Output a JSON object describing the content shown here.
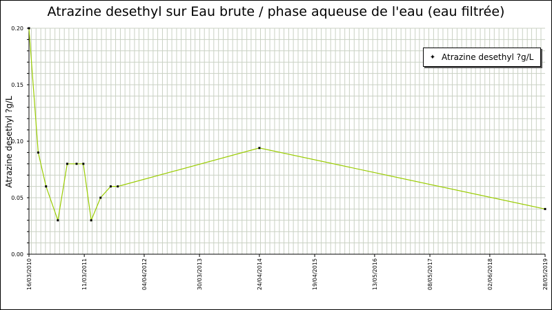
{
  "chart_data": {
    "type": "line",
    "title": "Atrazine desethyl sur Eau brute / phase aqueuse de l'eau (eau filtrée)",
    "ylabel": "Atrazine desethyl ?g/L",
    "xlabel": "",
    "ylim": [
      0,
      0.2
    ],
    "y_ticks": [
      "0.00",
      "0.05",
      "0.10",
      "0.15",
      "0.20"
    ],
    "x_range": [
      "2010-03-16",
      "2019-05-28"
    ],
    "x_ticks": [
      {
        "date": "2010-03-16",
        "label": "16/03/2010"
      },
      {
        "date": "2011-03-11",
        "label": "11/03/2011"
      },
      {
        "date": "2012-04-04",
        "label": "04/04/2012"
      },
      {
        "date": "2013-03-30",
        "label": "30/03/2013"
      },
      {
        "date": "2014-04-24",
        "label": "24/04/2014"
      },
      {
        "date": "2015-04-19",
        "label": "19/04/2015"
      },
      {
        "date": "2016-05-13",
        "label": "13/05/2016"
      },
      {
        "date": "2017-05-08",
        "label": "08/05/2017"
      },
      {
        "date": "2018-06-02",
        "label": "02/06/2018"
      },
      {
        "date": "2019-05-28",
        "label": "28/05/2019"
      }
    ],
    "grid": true,
    "legend_position": "top-right",
    "series": [
      {
        "name": "Atrazine desethyl ?g/L",
        "color": "#99cc00",
        "points": [
          {
            "x": "2010-03-16",
            "y": 0.2
          },
          {
            "x": "2010-05-15",
            "y": 0.09
          },
          {
            "x": "2010-07-05",
            "y": 0.06
          },
          {
            "x": "2010-09-20",
            "y": 0.03
          },
          {
            "x": "2010-11-20",
            "y": 0.08
          },
          {
            "x": "2011-01-20",
            "y": 0.08
          },
          {
            "x": "2011-03-05",
            "y": 0.08
          },
          {
            "x": "2011-04-25",
            "y": 0.03
          },
          {
            "x": "2011-06-25",
            "y": 0.05
          },
          {
            "x": "2011-08-30",
            "y": 0.06
          },
          {
            "x": "2011-10-15",
            "y": 0.06
          },
          {
            "x": "2014-04-24",
            "y": 0.094
          },
          {
            "x": "2019-05-28",
            "y": 0.04
          }
        ]
      }
    ]
  }
}
